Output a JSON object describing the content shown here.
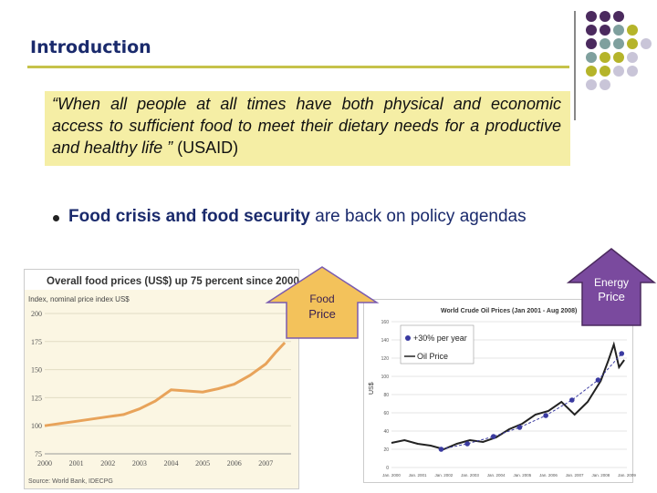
{
  "slide": {
    "title": "Introduction",
    "quote": {
      "text": "“When all people at all times have both physical and economic access to sufficient food to meet their dietary needs for a productive and healthy life ”",
      "source": "(USAID)"
    },
    "bullet": {
      "bold": "Food crisis and food security",
      "rest": " are back on policy agendas"
    },
    "food_arrow": {
      "line1": "Food",
      "line2": "Price"
    },
    "energy_arrow": {
      "line1": "Energy",
      "line2": "Price"
    },
    "colors": {
      "purple": "#4b2a5e",
      "teal": "#7fa09e",
      "olive": "#b5b42a",
      "lavender": "#c9c5d8",
      "rule": "#c6c24a",
      "quote_bg": "#f5eea5",
      "arrow_fill": "#f3c25b",
      "arrow_edge": "#7a5bb0"
    }
  },
  "chart_data": [
    {
      "type": "line",
      "title": "Overall food prices (US$) up 75 percent since 2000",
      "ylabel": "Index, nominal price index US$",
      "source": "Source: World Bank, IDECPG",
      "x": [
        2000,
        2000.5,
        2001,
        2001.5,
        2002,
        2002.5,
        2003,
        2003.5,
        2004,
        2004.5,
        2005,
        2005.5,
        2006,
        2006.5,
        2007,
        2007.3,
        2007.6
      ],
      "values": [
        100,
        102,
        104,
        106,
        108,
        110,
        115,
        122,
        132,
        131,
        130,
        133,
        137,
        145,
        155,
        165,
        174
      ],
      "xticks": [
        "2000",
        "2001",
        "2002",
        "2003",
        "2004",
        "2005",
        "2006",
        "2007"
      ],
      "yticks": [
        75,
        100,
        125,
        150,
        175,
        200
      ],
      "ylim": [
        75,
        200
      ],
      "xlim": [
        2000,
        2007.8
      ]
    },
    {
      "type": "line",
      "title": "World Crude Oil Prices (Jan 2001 - Aug 2008)",
      "ylabel": "US$",
      "legend": [
        "+30% per year",
        "Oil Price"
      ],
      "xticks": [
        "Jan. 2000",
        "Jan. 2001",
        "Jan. 2002",
        "Jan. 2003",
        "Jan. 2004",
        "Jan. 2005",
        "Jan. 2006",
        "Jan. 2007",
        "Jan. 2008",
        "Jan. 2009"
      ],
      "yticks": [
        0,
        20,
        40,
        60,
        80,
        100,
        120,
        140,
        160
      ],
      "ylim": [
        0,
        160
      ],
      "x": [
        2000,
        2000.5,
        2001,
        2001.5,
        2002,
        2002.5,
        2003,
        2003.5,
        2004,
        2004.5,
        2005,
        2005.5,
        2006,
        2006.5,
        2007,
        2007.5,
        2008,
        2008.3,
        2008.5,
        2008.7,
        2008.9
      ],
      "values": [
        27,
        30,
        26,
        24,
        20,
        26,
        30,
        28,
        33,
        42,
        48,
        58,
        62,
        72,
        58,
        72,
        95,
        118,
        135,
        110,
        118
      ],
      "trend_x": [
        2001.9,
        2002.9,
        2003.9,
        2004.9,
        2005.9,
        2006.9,
        2007.9,
        2008.8
      ],
      "trend_values": [
        20,
        26,
        34,
        44,
        57,
        74,
        96,
        125
      ]
    }
  ]
}
